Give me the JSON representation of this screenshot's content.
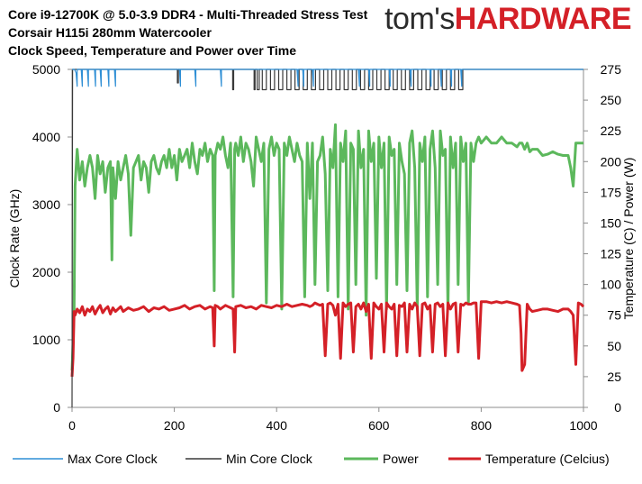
{
  "header": {
    "title_lines": [
      "Core i9-12700K @ 5.0-3.9 DDR4 - Multi-Threaded Stress Test",
      "Corsair H115i 280mm Watercooler",
      "Clock Speed, Temperature and Power over Time"
    ],
    "logo_part1": "tom's",
    "logo_part2": "HARDWARE"
  },
  "colors": {
    "max_core_clock": "#2f8fd5",
    "min_core_clock": "#3a3a3a",
    "power": "#5cb85c",
    "temperature": "#d42027",
    "axis": "#8c8c8c"
  },
  "chart_data": {
    "type": "line",
    "xlabel": "",
    "ylabel_left": "Clock Rate (GHz)",
    "ylabel_right": "Temperature (C) / Power (W)",
    "xlim": [
      0,
      1000
    ],
    "ylim_left": [
      0,
      5000
    ],
    "ylim_right": [
      0,
      275
    ],
    "x_ticks": [
      0,
      200,
      400,
      600,
      800,
      1000
    ],
    "y_left_ticks": [
      0,
      1000,
      2000,
      3000,
      4000,
      5000
    ],
    "y_right_ticks": [
      0,
      25,
      50,
      75,
      100,
      125,
      150,
      175,
      200,
      225,
      250,
      275
    ],
    "grid": false,
    "legend_position": "bottom",
    "series": [
      {
        "name": "Max Core Clock",
        "axis": "left",
        "x": [
          0,
          5,
          8,
          10,
          10,
          18,
          20,
          20,
          30,
          32,
          32,
          44,
          46,
          46,
          55,
          57,
          57,
          70,
          72,
          72,
          83,
          85,
          85,
          210,
          212,
          212,
          240,
          242,
          242,
          290,
          292,
          292,
          440,
          442,
          442,
          451,
          453,
          453,
          470,
          472,
          472,
          560,
          562,
          562,
          580,
          582,
          582,
          620,
          622,
          622,
          661,
          663,
          663,
          700,
          702,
          702,
          720,
          722,
          722,
          740,
          742,
          742,
          760,
          762,
          762,
          1000
        ],
        "y": [
          5000,
          5000,
          4950,
          4750,
          5000,
          5000,
          4750,
          5000,
          5000,
          4750,
          5000,
          5000,
          4750,
          5000,
          5000,
          4750,
          5000,
          5000,
          4750,
          5000,
          5000,
          4750,
          5000,
          5000,
          4750,
          5000,
          5000,
          4750,
          5000,
          5000,
          4750,
          5000,
          5000,
          4750,
          5000,
          5000,
          4750,
          5000,
          5000,
          4750,
          5000,
          5000,
          4750,
          5000,
          5000,
          4750,
          5000,
          5000,
          4750,
          5000,
          5000,
          4750,
          5000,
          5000,
          4750,
          5000,
          5000,
          4750,
          5000,
          5000,
          4750,
          5000,
          5000,
          4750,
          5000,
          5000
        ]
      },
      {
        "name": "Min Core Clock",
        "axis": "left",
        "x": [
          0,
          1,
          2,
          3,
          4,
          206,
          206,
          208,
          208,
          314,
          314,
          316,
          316,
          356,
          356,
          358,
          358,
          362,
          362,
          366,
          366,
          372,
          372,
          380,
          380,
          388,
          388,
          396,
          396,
          404,
          404,
          412,
          412,
          420,
          420,
          428,
          428,
          436,
          436,
          444,
          444,
          452,
          452,
          460,
          460,
          468,
          468,
          476,
          476,
          484,
          484,
          492,
          492,
          500,
          500,
          508,
          508,
          516,
          516,
          524,
          524,
          532,
          532,
          540,
          540,
          548,
          548,
          556,
          556,
          564,
          564,
          572,
          572,
          580,
          580,
          588,
          588,
          596,
          596,
          604,
          604,
          612,
          612,
          620,
          620,
          628,
          628,
          636,
          636,
          644,
          644,
          652,
          652,
          660,
          660,
          668,
          668,
          676,
          676,
          684,
          684,
          692,
          692,
          700,
          700,
          708,
          708,
          716,
          716,
          724,
          724,
          732,
          732,
          740,
          740,
          748,
          748,
          756,
          756,
          764,
          764,
          1000
        ],
        "y": [
          0,
          5000,
          5000,
          5000,
          5000,
          5000,
          4800,
          4800,
          5000,
          5000,
          4700,
          4700,
          5000,
          5000,
          4700,
          4700,
          5000,
          5000,
          4700,
          4700,
          5000,
          5000,
          4700,
          4700,
          5000,
          5000,
          4700,
          4700,
          5000,
          5000,
          4700,
          4700,
          5000,
          5000,
          4700,
          4700,
          5000,
          5000,
          4700,
          4700,
          5000,
          5000,
          4700,
          4700,
          5000,
          5000,
          4700,
          4700,
          5000,
          5000,
          4700,
          4700,
          5000,
          5000,
          4700,
          4700,
          5000,
          5000,
          4700,
          4700,
          5000,
          5000,
          4700,
          4700,
          5000,
          5000,
          4700,
          4700,
          5000,
          5000,
          4700,
          4700,
          5000,
          5000,
          4700,
          4700,
          5000,
          5000,
          4700,
          4700,
          5000,
          5000,
          4700,
          4700,
          5000,
          5000,
          4700,
          4700,
          5000,
          5000,
          4700,
          4700,
          5000,
          5000,
          4700,
          4700,
          5000,
          5000,
          4700,
          4700,
          5000,
          5000,
          4700,
          4700,
          5000,
          5000,
          4700,
          4700,
          5000,
          5000,
          4700,
          4700,
          5000,
          5000,
          4700,
          4700,
          5000,
          5000,
          4700,
          4700,
          5000,
          5000
        ]
      },
      {
        "name": "Power",
        "axis": "right",
        "x": [
          0,
          4,
          6,
          10,
          15,
          20,
          25,
          30,
          35,
          40,
          45,
          50,
          55,
          60,
          65,
          70,
          75,
          78,
          80,
          85,
          90,
          95,
          100,
          105,
          110,
          115,
          120,
          125,
          130,
          135,
          140,
          145,
          150,
          155,
          160,
          165,
          170,
          175,
          180,
          185,
          190,
          195,
          200,
          205,
          210,
          215,
          220,
          225,
          230,
          235,
          240,
          245,
          250,
          255,
          260,
          265,
          270,
          275,
          278,
          280,
          285,
          290,
          295,
          300,
          305,
          310,
          315,
          318,
          320,
          325,
          330,
          335,
          340,
          345,
          350,
          355,
          360,
          365,
          370,
          375,
          380,
          385,
          390,
          395,
          400,
          405,
          410,
          415,
          420,
          425,
          430,
          435,
          440,
          445,
          450,
          455,
          460,
          465,
          470,
          475,
          480,
          485,
          490,
          495,
          500,
          505,
          510,
          515,
          520,
          525,
          530,
          535,
          540,
          545,
          550,
          555,
          560,
          565,
          570,
          575,
          580,
          585,
          590,
          595,
          600,
          605,
          610,
          615,
          620,
          625,
          630,
          635,
          640,
          645,
          650,
          655,
          660,
          665,
          670,
          675,
          680,
          685,
          690,
          695,
          700,
          705,
          710,
          715,
          720,
          725,
          730,
          735,
          740,
          745,
          750,
          755,
          760,
          765,
          770,
          775,
          780,
          785,
          790,
          795,
          800,
          810,
          820,
          830,
          840,
          850,
          860,
          870,
          875,
          880,
          885,
          890,
          895,
          900,
          910,
          920,
          930,
          940,
          950,
          960,
          970,
          975,
          980,
          985,
          990,
          995,
          1000
        ],
        "y": [
          30,
          80,
          180,
          210,
          185,
          200,
          180,
          195,
          205,
          195,
          170,
          205,
          190,
          200,
          175,
          195,
          200,
          120,
          195,
          170,
          200,
          185,
          195,
          205,
          190,
          140,
          195,
          200,
          205,
          185,
          200,
          195,
          175,
          200,
          205,
          195,
          190,
          200,
          205,
          195,
          210,
          195,
          205,
          185,
          210,
          200,
          205,
          210,
          195,
          215,
          200,
          190,
          210,
          205,
          215,
          200,
          210,
          205,
          95,
          205,
          215,
          210,
          220,
          205,
          195,
          215,
          90,
          210,
          215,
          205,
          220,
          200,
          215,
          210,
          200,
          180,
          220,
          210,
          200,
          215,
          85,
          210,
          220,
          205,
          215,
          210,
          80,
          215,
          205,
          220,
          210,
          200,
          215,
          205,
          200,
          90,
          215,
          170,
          215,
          100,
          200,
          205,
          220,
          190,
          95,
          210,
          195,
          230,
          90,
          215,
          200,
          225,
          80,
          215,
          210,
          100,
          225,
          195,
          210,
          75,
          225,
          200,
          215,
          105,
          220,
          195,
          215,
          80,
          220,
          205,
          210,
          100,
          215,
          200,
          190,
          95,
          215,
          225,
          195,
          80,
          215,
          200,
          220,
          90,
          210,
          225,
          195,
          100,
          225,
          205,
          210,
          80,
          220,
          195,
          215,
          100,
          220,
          200,
          215,
          85,
          215,
          200,
          215,
          220,
          215,
          220,
          215,
          215,
          220,
          215,
          215,
          212,
          215,
          215,
          210,
          215,
          208,
          210,
          210,
          205,
          206,
          208,
          206,
          205,
          205,
          195,
          180,
          215,
          215,
          215,
          215
        ]
      },
      {
        "name": "Temperature (Celcius)",
        "axis": "right",
        "x": [
          0,
          2,
          4,
          6,
          10,
          15,
          20,
          25,
          30,
          35,
          40,
          45,
          50,
          55,
          60,
          65,
          70,
          75,
          80,
          85,
          90,
          95,
          100,
          110,
          120,
          130,
          140,
          150,
          160,
          170,
          180,
          190,
          200,
          210,
          220,
          230,
          240,
          250,
          260,
          270,
          275,
          278,
          280,
          285,
          290,
          300,
          310,
          315,
          318,
          320,
          330,
          340,
          350,
          360,
          370,
          380,
          390,
          400,
          410,
          420,
          430,
          440,
          450,
          460,
          465,
          470,
          475,
          480,
          485,
          490,
          495,
          500,
          505,
          510,
          515,
          520,
          525,
          530,
          535,
          540,
          545,
          550,
          555,
          560,
          565,
          570,
          575,
          580,
          585,
          590,
          595,
          600,
          605,
          610,
          615,
          620,
          625,
          630,
          635,
          640,
          645,
          650,
          655,
          660,
          665,
          670,
          675,
          680,
          685,
          690,
          695,
          700,
          705,
          710,
          715,
          720,
          725,
          730,
          735,
          740,
          745,
          750,
          755,
          760,
          765,
          770,
          775,
          780,
          785,
          790,
          795,
          800,
          810,
          820,
          830,
          840,
          850,
          860,
          870,
          875,
          878,
          880,
          885,
          890,
          895,
          900,
          910,
          920,
          930,
          940,
          950,
          960,
          970,
          975,
          980,
          985,
          990,
          995,
          1000
        ],
        "y": [
          25,
          40,
          78,
          75,
          80,
          77,
          82,
          75,
          80,
          78,
          82,
          76,
          80,
          83,
          77,
          80,
          82,
          76,
          81,
          78,
          80,
          82,
          78,
          81,
          79,
          80,
          82,
          78,
          81,
          80,
          82,
          79,
          80,
          81,
          83,
          80,
          82,
          83,
          80,
          82,
          81,
          50,
          83,
          82,
          80,
          83,
          81,
          80,
          45,
          82,
          83,
          81,
          82,
          80,
          83,
          82,
          81,
          83,
          82,
          84,
          82,
          83,
          84,
          83,
          82,
          83,
          85,
          84,
          83,
          84,
          42,
          84,
          85,
          83,
          75,
          84,
          40,
          85,
          82,
          84,
          85,
          45,
          82,
          84,
          80,
          85,
          78,
          84,
          40,
          85,
          82,
          80,
          84,
          45,
          85,
          82,
          80,
          84,
          42,
          83,
          82,
          85,
          45,
          84,
          80,
          85,
          82,
          42,
          84,
          85,
          80,
          83,
          45,
          84,
          85,
          82,
          84,
          42,
          85,
          80,
          84,
          85,
          45,
          84,
          83,
          85,
          84,
          84,
          85,
          85,
          40,
          86,
          86,
          85,
          86,
          85,
          86,
          85,
          84,
          83,
          60,
          30,
          35,
          84,
          80,
          78,
          79,
          80,
          80,
          79,
          78,
          80,
          80,
          78,
          75,
          35,
          85,
          84,
          82
        ]
      }
    ]
  }
}
